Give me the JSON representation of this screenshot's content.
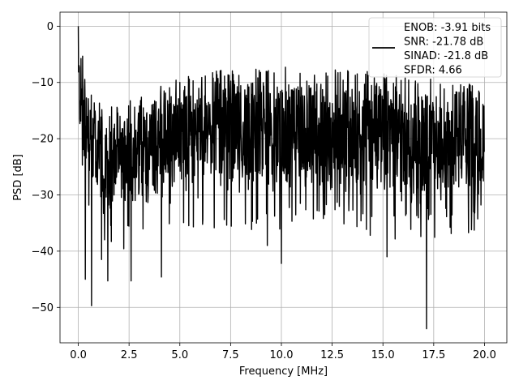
{
  "chart_data": {
    "type": "line",
    "xlabel": "Frequency [MHz]",
    "ylabel": "PSD [dB]",
    "xlim": [
      -0.9,
      21.1
    ],
    "ylim": [
      -56.3,
      2.5
    ],
    "xticks": [
      0.0,
      2.5,
      5.0,
      7.5,
      10.0,
      12.5,
      15.0,
      17.5,
      20.0
    ],
    "xtick_labels": [
      "0.0",
      "2.5",
      "5.0",
      "7.5",
      "10.0",
      "12.5",
      "15.0",
      "17.5",
      "20.0"
    ],
    "yticks": [
      0,
      -10,
      -20,
      -30,
      -40,
      -50
    ],
    "ytick_labels": [
      "0",
      "−10",
      "−20",
      "−30",
      "−40",
      "−50"
    ],
    "grid": true,
    "legend_position": "top-right",
    "series": [
      {
        "name": "ENOB: -3.91 bits\nSNR: -21.78 dB\nSINAD: -21.8 dB\nSFDR: 4.66",
        "color": "#000000",
        "x_start": 0.0,
        "x_end": 20.0,
        "peak": [
          0.0,
          0.0
        ],
        "envelope_frequency": [
          0.0,
          0.5,
          1.0,
          2.0,
          3.0,
          5.0,
          7.5,
          10.0,
          12.5,
          15.0,
          17.5,
          20.0
        ],
        "envelope_max_psd": [
          0.0,
          -11.5,
          -13.5,
          -14.0,
          -12.5,
          -9.0,
          -7.5,
          -7.0,
          -7.5,
          -8.0,
          -9.5,
          -10.5
        ],
        "envelope_min_psd": [
          -20.0,
          -28.0,
          -32.0,
          -34.0,
          -33.0,
          -30.0,
          -30.0,
          -31.0,
          -31.0,
          -32.0,
          -32.0,
          -31.0
        ],
        "dips": [
          [
            0.35,
            -45.0
          ],
          [
            0.65,
            -49.7
          ],
          [
            1.15,
            -41.5
          ],
          [
            1.45,
            -45.3
          ],
          [
            2.6,
            -45.3
          ],
          [
            4.1,
            -44.6
          ],
          [
            9.3,
            -39.0
          ],
          [
            10.0,
            -42.2
          ],
          [
            15.2,
            -41.0
          ],
          [
            17.15,
            -53.8
          ]
        ]
      }
    ]
  }
}
